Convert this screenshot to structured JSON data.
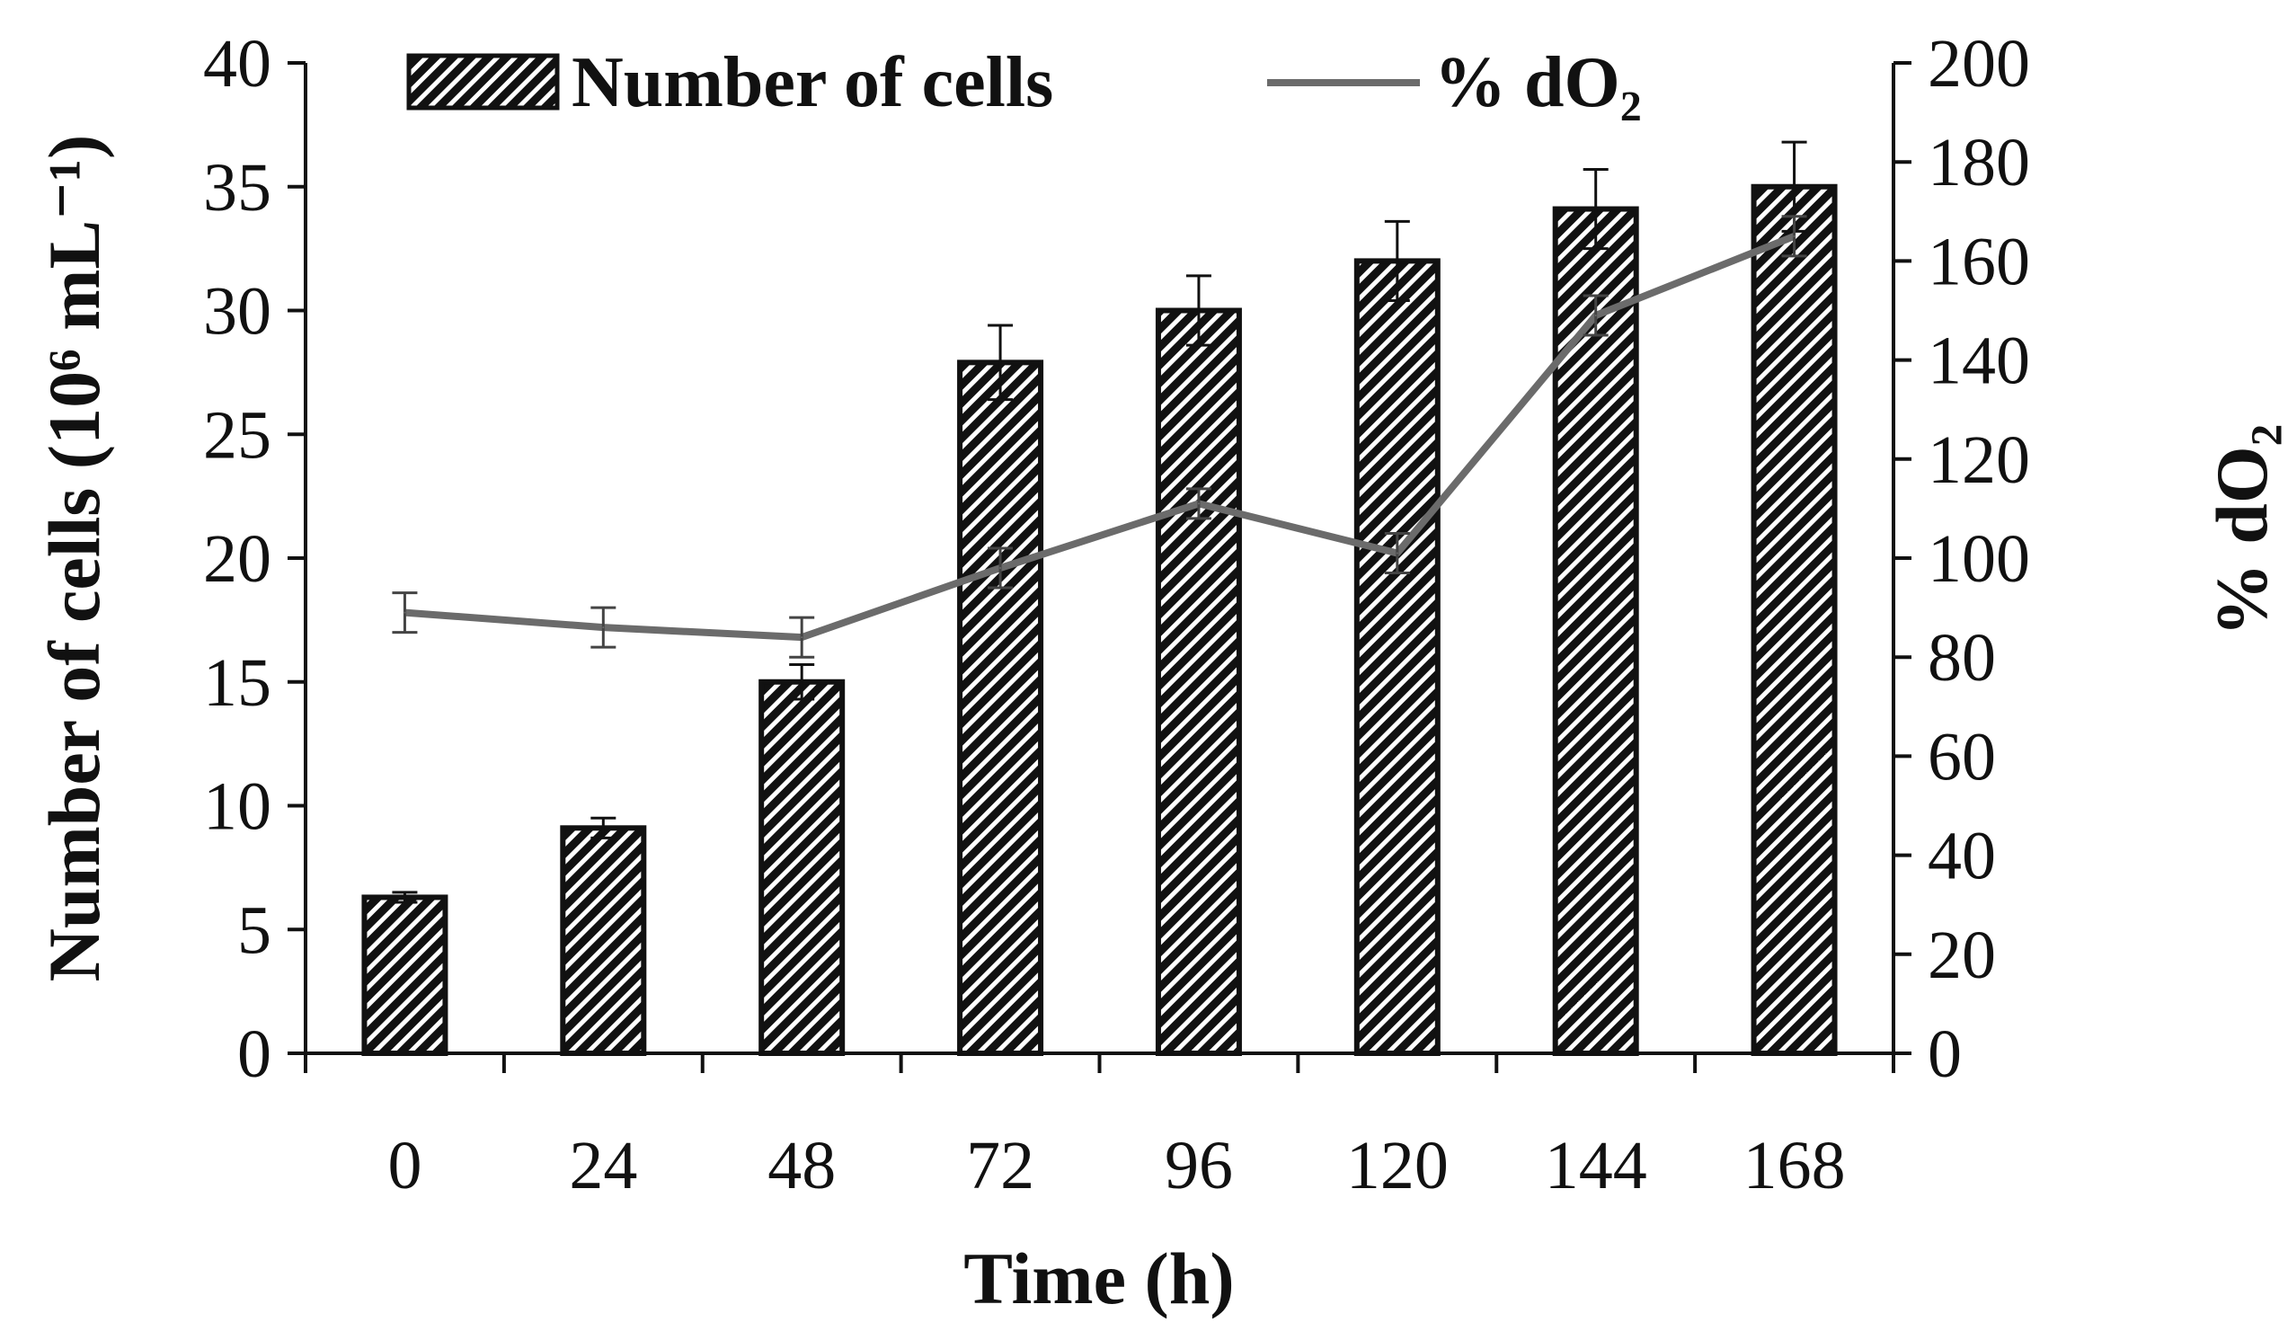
{
  "chart_data": {
    "type": "bar",
    "categories": [
      "0",
      "24",
      "48",
      "72",
      "96",
      "120",
      "144",
      "168"
    ],
    "series": [
      {
        "name": "Number of cells",
        "kind": "bar",
        "axis": "left",
        "values": [
          6.3,
          9.1,
          15.0,
          27.9,
          30.0,
          32.0,
          34.1,
          35.0
        ],
        "errors": [
          0.2,
          0.4,
          0.7,
          1.5,
          1.4,
          1.6,
          1.6,
          1.8
        ]
      },
      {
        "name": "% dO₂",
        "kind": "line",
        "axis": "right",
        "values": [
          89,
          86,
          84,
          98,
          111,
          101,
          149,
          165
        ],
        "errors": [
          4,
          4,
          4,
          4,
          3,
          4,
          4,
          4
        ]
      }
    ],
    "title": "",
    "xlabel": "Time (h)",
    "ylabel": "Number of cells (10⁶ mL⁻¹)",
    "y2label": "% dO₂",
    "ylim": [
      0,
      40
    ],
    "y2lim": [
      0,
      200
    ],
    "yticks": [
      "0",
      "5",
      "10",
      "15",
      "20",
      "25",
      "30",
      "35",
      "40"
    ],
    "y2ticks": [
      "0",
      "20",
      "40",
      "60",
      "80",
      "100",
      "120",
      "140",
      "160",
      "180",
      "200"
    ],
    "legend": [
      "Number of cells",
      "% dO₂"
    ],
    "legend_position": "top",
    "grid": false,
    "colors": {
      "bar_fill": "#111111",
      "bar_stripe": "#ffffff",
      "line": "#6b6b6b",
      "axis": "#111111"
    }
  }
}
